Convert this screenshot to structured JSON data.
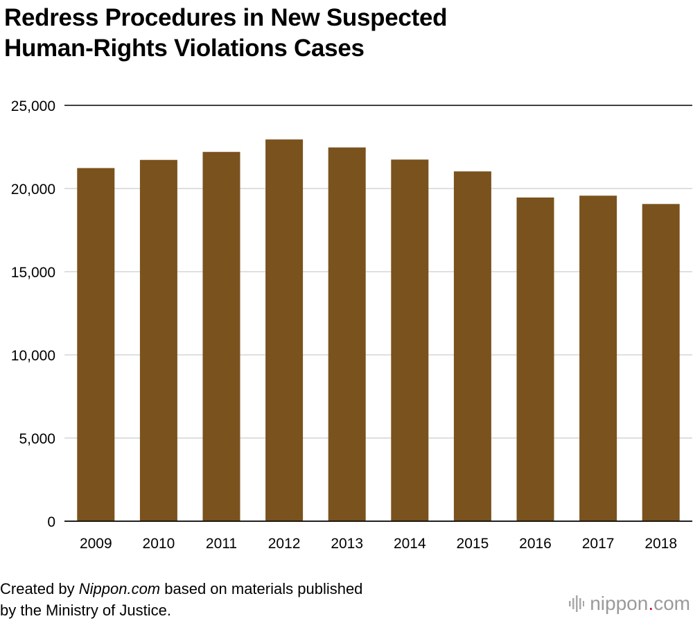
{
  "title_line1": "Redress Procedures in New Suspected",
  "title_line2": "Human-Rights Violations Cases",
  "source": {
    "prefix": "Created by ",
    "site": "Nippon.com",
    "suffix": " based on materials published",
    "line2": "by the Ministry of Justice."
  },
  "logo": {
    "name": "nippon",
    "dot": ".",
    "tld": "com",
    "icon": "bars-icon"
  },
  "colors": {
    "bar": "#7a521d",
    "grid": "#cccccc",
    "axis": "#000000",
    "logo_dot": "#c8102e"
  },
  "chart_data": {
    "type": "bar",
    "categories": [
      "2009",
      "2010",
      "2011",
      "2012",
      "2013",
      "2014",
      "2015",
      "2016",
      "2017",
      "2018"
    ],
    "values": [
      21230,
      21720,
      22200,
      22950,
      22470,
      21740,
      21030,
      19460,
      19570,
      19070
    ],
    "yticks": [
      "0",
      "5,000",
      "10,000",
      "15,000",
      "20,000",
      "25,000"
    ],
    "ylim": [
      0,
      25000
    ],
    "grid": true,
    "legend": "none"
  }
}
